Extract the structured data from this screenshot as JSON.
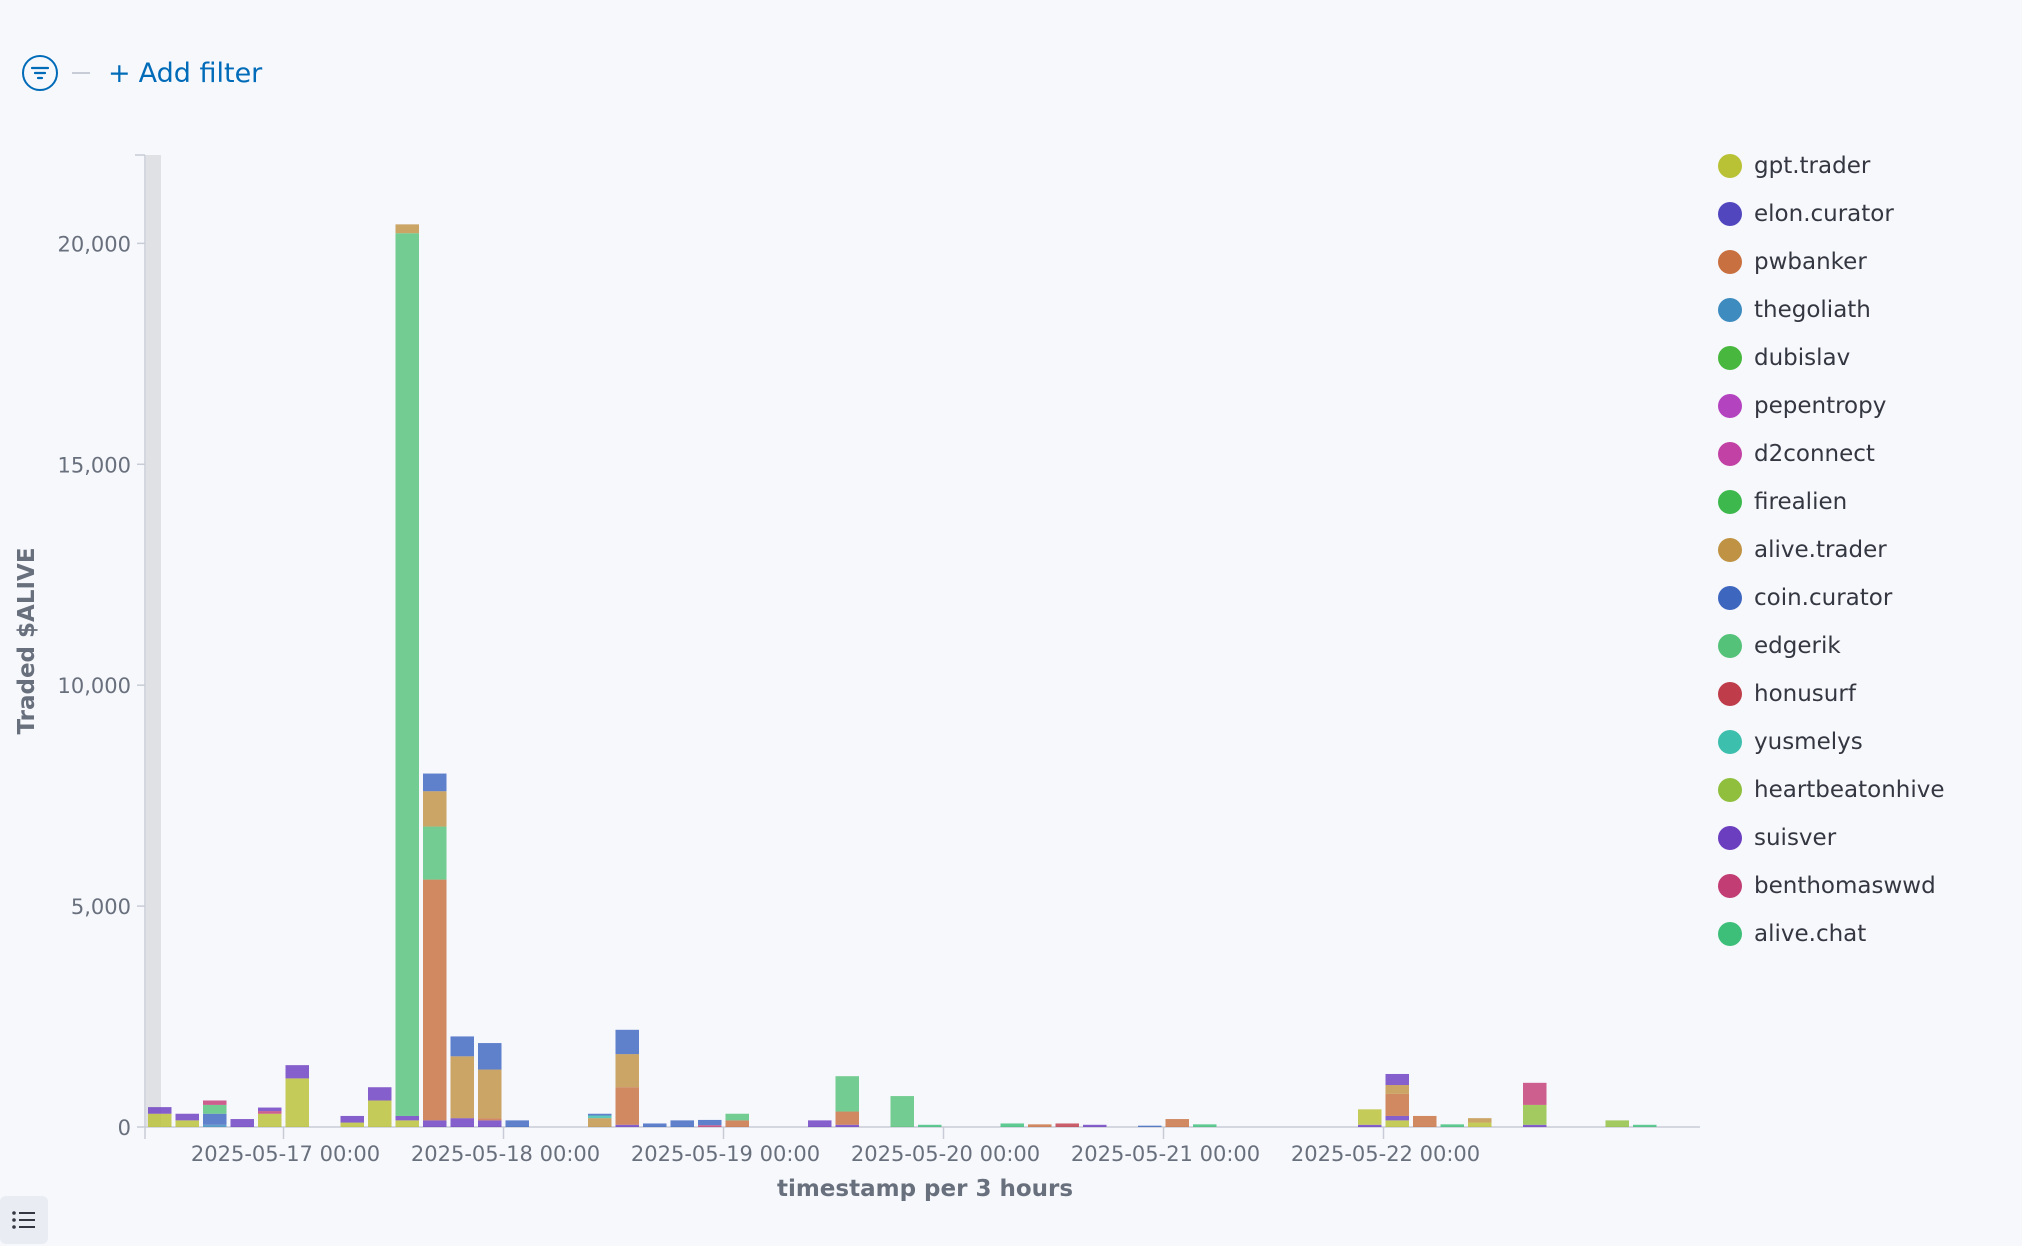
{
  "filter_bar": {
    "add_filter_label": "Add filter",
    "add_filter_prefix": "+"
  },
  "chart_data": {
    "type": "bar",
    "stacked": true,
    "title": "",
    "xlabel": "timestamp per 3 hours",
    "ylabel": "Traded $ALIVE",
    "ylim": [
      0,
      22000
    ],
    "yticks": [
      0,
      5000,
      10000,
      15000,
      20000
    ],
    "ytick_labels": [
      "0",
      "5,000",
      "10,000",
      "15,000",
      "20,000"
    ],
    "x_ticks": [
      "2025-05-17 00:00",
      "2025-05-18 00:00",
      "2025-05-19 00:00",
      "2025-05-20 00:00",
      "2025-05-21 00:00",
      "2025-05-22 00:00"
    ],
    "x_start": "2025-05-16 09:00",
    "bucket_hours": 3,
    "num_buckets": 56,
    "legend_position": "right",
    "grid": false,
    "series": [
      {
        "name": "gpt.trader",
        "color": "#b9c135"
      },
      {
        "name": "elon.curator",
        "color": "#5246bf"
      },
      {
        "name": "pwbanker",
        "color": "#c8703f"
      },
      {
        "name": "thegoliath",
        "color": "#3d8bbf"
      },
      {
        "name": "dubislav",
        "color": "#47b83d"
      },
      {
        "name": "pepentropy",
        "color": "#b443bf"
      },
      {
        "name": "d2connect",
        "color": "#c241a4"
      },
      {
        "name": "firealien",
        "color": "#3db84c"
      },
      {
        "name": "alive.trader",
        "color": "#bf9343"
      },
      {
        "name": "coin.curator",
        "color": "#3d66bf"
      },
      {
        "name": "edgerik",
        "color": "#55c27a"
      },
      {
        "name": "honusurf",
        "color": "#bf3d4a"
      },
      {
        "name": "yusmelys",
        "color": "#3dbfad"
      },
      {
        "name": "heartbeatonhive",
        "color": "#8fbf3d"
      },
      {
        "name": "suisver",
        "color": "#6b3dbf"
      },
      {
        "name": "benthomaswwd",
        "color": "#c23d74"
      },
      {
        "name": "alive.chat",
        "color": "#3dbf7a"
      }
    ],
    "bars": [
      {
        "i": 0,
        "stack": [
          [
            "gpt.trader",
            300
          ],
          [
            "suisver",
            150
          ]
        ]
      },
      {
        "i": 1,
        "stack": [
          [
            "gpt.trader",
            150
          ],
          [
            "suisver",
            150
          ]
        ]
      },
      {
        "i": 2,
        "stack": [
          [
            "thegoliath",
            50
          ],
          [
            "coin.curator",
            250
          ],
          [
            "edgerik",
            200
          ],
          [
            "benthomaswwd",
            100
          ]
        ]
      },
      {
        "i": 3,
        "stack": [
          [
            "suisver",
            180
          ]
        ]
      },
      {
        "i": 4,
        "stack": [
          [
            "gpt.trader",
            300
          ],
          [
            "benthomaswwd",
            60
          ],
          [
            "suisver",
            80
          ]
        ]
      },
      {
        "i": 5,
        "stack": [
          [
            "gpt.trader",
            1100
          ],
          [
            "suisver",
            300
          ]
        ]
      },
      {
        "i": 7,
        "stack": [
          [
            "gpt.trader",
            100
          ],
          [
            "suisver",
            150
          ]
        ]
      },
      {
        "i": 8,
        "stack": [
          [
            "gpt.trader",
            600
          ],
          [
            "suisver",
            300
          ]
        ]
      },
      {
        "i": 9,
        "stack": [
          [
            "gpt.trader",
            150
          ],
          [
            "suisver",
            100
          ],
          [
            "edgerik",
            19980
          ],
          [
            "alive.trader",
            200
          ]
        ]
      },
      {
        "i": 10,
        "stack": [
          [
            "suisver",
            150
          ],
          [
            "pwbanker",
            5450
          ],
          [
            "edgerik",
            1200
          ],
          [
            "alive.trader",
            800
          ],
          [
            "coin.curator",
            400
          ]
        ]
      },
      {
        "i": 11,
        "stack": [
          [
            "suisver",
            200
          ],
          [
            "alive.trader",
            1400
          ],
          [
            "coin.curator",
            450
          ]
        ]
      },
      {
        "i": 12,
        "stack": [
          [
            "suisver",
            150
          ],
          [
            "pwbanker",
            50
          ],
          [
            "alive.trader",
            1100
          ],
          [
            "coin.curator",
            600
          ]
        ]
      },
      {
        "i": 13,
        "stack": [
          [
            "coin.curator",
            150
          ]
        ]
      },
      {
        "i": 16,
        "stack": [
          [
            "alive.trader",
            200
          ],
          [
            "yusmelys",
            60
          ],
          [
            "coin.curator",
            40
          ]
        ]
      },
      {
        "i": 17,
        "stack": [
          [
            "suisver",
            50
          ],
          [
            "pwbanker",
            850
          ],
          [
            "alive.trader",
            750
          ],
          [
            "coin.curator",
            550
          ]
        ]
      },
      {
        "i": 18,
        "stack": [
          [
            "coin.curator",
            80
          ]
        ]
      },
      {
        "i": 19,
        "stack": [
          [
            "coin.curator",
            150
          ]
        ]
      },
      {
        "i": 20,
        "stack": [
          [
            "benthomaswwd",
            40
          ],
          [
            "coin.curator",
            120
          ]
        ]
      },
      {
        "i": 21,
        "stack": [
          [
            "pwbanker",
            150
          ],
          [
            "edgerik",
            150
          ]
        ]
      },
      {
        "i": 24,
        "stack": [
          [
            "suisver",
            150
          ]
        ]
      },
      {
        "i": 25,
        "stack": [
          [
            "suisver",
            50
          ],
          [
            "pwbanker",
            300
          ],
          [
            "edgerik",
            800
          ]
        ]
      },
      {
        "i": 27,
        "stack": [
          [
            "edgerik",
            700
          ]
        ]
      },
      {
        "i": 28,
        "stack": [
          [
            "alive.chat",
            50
          ]
        ]
      },
      {
        "i": 31,
        "stack": [
          [
            "alive.chat",
            80
          ]
        ]
      },
      {
        "i": 32,
        "stack": [
          [
            "pwbanker",
            60
          ]
        ]
      },
      {
        "i": 33,
        "stack": [
          [
            "honusurf",
            80
          ]
        ]
      },
      {
        "i": 34,
        "stack": [
          [
            "suisver",
            50
          ]
        ]
      },
      {
        "i": 36,
        "stack": [
          [
            "coin.curator",
            30
          ]
        ]
      },
      {
        "i": 37,
        "stack": [
          [
            "pwbanker",
            180
          ]
        ]
      },
      {
        "i": 38,
        "stack": [
          [
            "alive.chat",
            60
          ]
        ]
      },
      {
        "i": 44,
        "stack": [
          [
            "suisver",
            50
          ],
          [
            "gpt.trader",
            350
          ]
        ]
      },
      {
        "i": 45,
        "stack": [
          [
            "gpt.trader",
            150
          ],
          [
            "suisver",
            100
          ],
          [
            "pwbanker",
            500
          ],
          [
            "alive.trader",
            200
          ],
          [
            "suisver",
            250
          ]
        ]
      },
      {
        "i": 46,
        "stack": [
          [
            "pwbanker",
            250
          ]
        ]
      },
      {
        "i": 47,
        "stack": [
          [
            "alive.chat",
            60
          ]
        ]
      },
      {
        "i": 48,
        "stack": [
          [
            "gpt.trader",
            100
          ],
          [
            "alive.trader",
            100
          ]
        ]
      },
      {
        "i": 50,
        "stack": [
          [
            "suisver",
            50
          ],
          [
            "heartbeatonhive",
            450
          ],
          [
            "benthomaswwd",
            500
          ]
        ]
      },
      {
        "i": 53,
        "stack": [
          [
            "heartbeatonhive",
            150
          ]
        ]
      },
      {
        "i": 54,
        "stack": [
          [
            "alive.chat",
            50
          ]
        ]
      }
    ]
  },
  "icons": {
    "filter": "filter-lines-icon",
    "list": "list-icon"
  }
}
